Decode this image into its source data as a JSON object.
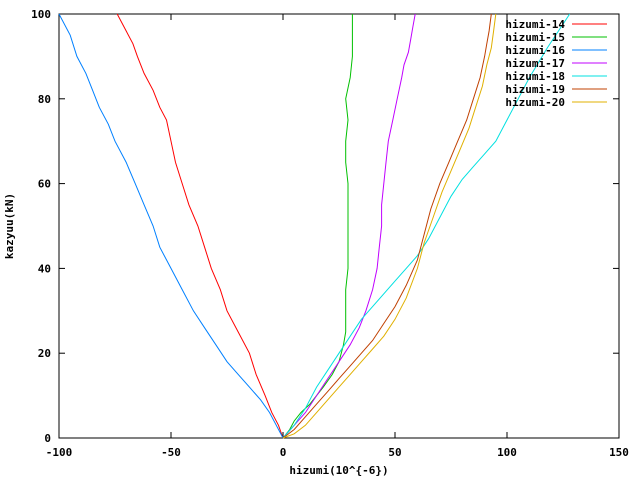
{
  "chart_data": {
    "type": "line",
    "xlabel": "hizumi(10^{-6})",
    "ylabel": "kazyuu(kN)",
    "xlim": [
      -100,
      150
    ],
    "ylim": [
      0,
      100
    ],
    "xticks": [
      "-100",
      "-50",
      "0",
      "50",
      "100",
      "150"
    ],
    "xtick_values": [
      -100,
      -50,
      0,
      50,
      100,
      150
    ],
    "yticks": [
      "0",
      "20",
      "40",
      "60",
      "80",
      "100"
    ],
    "ytick_values": [
      0,
      20,
      40,
      60,
      80,
      100
    ],
    "grid": false,
    "legend_position": "top-right",
    "series": [
      {
        "name": "hizumi-14",
        "color": "#ff0000",
        "x": [
          0,
          -2,
          -5,
          -8,
          -12,
          -15,
          -20,
          -25,
          -28,
          -32,
          -35,
          -38,
          -42,
          -45,
          -48,
          -50,
          -52,
          -55,
          -58,
          -62,
          -65,
          -67,
          -70,
          -72,
          -74
        ],
        "y": [
          0,
          3,
          6,
          10,
          15,
          20,
          25,
          30,
          35,
          40,
          45,
          50,
          55,
          60,
          65,
          70,
          75,
          78,
          82,
          86,
          90,
          93,
          96,
          98,
          100
        ]
      },
      {
        "name": "hizumi-15",
        "color": "#00c000",
        "x": [
          0,
          3,
          5,
          8,
          12,
          15,
          18,
          22,
          25,
          27,
          28,
          28,
          28,
          29,
          29,
          29,
          29,
          29,
          28,
          28,
          29,
          28,
          30,
          31,
          31
        ],
        "y": [
          0,
          2,
          4,
          6,
          8,
          10,
          12,
          15,
          18,
          22,
          25,
          30,
          35,
          40,
          45,
          50,
          55,
          60,
          65,
          70,
          75,
          80,
          85,
          90,
          100
        ]
      },
      {
        "name": "hizumi-16",
        "color": "#0080ff",
        "x": [
          0,
          -3,
          -6,
          -10,
          -15,
          -20,
          -25,
          -30,
          -35,
          -40,
          -45,
          -50,
          -55,
          -58,
          -62,
          -66,
          -70,
          -75,
          -78,
          -82,
          -85,
          -88,
          -92,
          -95,
          -100
        ],
        "y": [
          0,
          3,
          6,
          9,
          12,
          15,
          18,
          22,
          26,
          30,
          35,
          40,
          45,
          50,
          55,
          60,
          65,
          70,
          74,
          78,
          82,
          86,
          90,
          95,
          100
        ]
      },
      {
        "name": "hizumi-17",
        "color": "#c000ff",
        "x": [
          0,
          5,
          10,
          15,
          20,
          25,
          30,
          34,
          37,
          40,
          42,
          43,
          44,
          44,
          45,
          46,
          47,
          49,
          51,
          53,
          54,
          56,
          57,
          58,
          59
        ],
        "y": [
          0,
          3,
          6,
          10,
          14,
          18,
          22,
          26,
          30,
          35,
          40,
          45,
          50,
          55,
          60,
          65,
          70,
          75,
          80,
          85,
          88,
          91,
          94,
          97,
          100
        ]
      },
      {
        "name": "hizumi-18",
        "color": "#00e0e0",
        "x": [
          0,
          5,
          10,
          15,
          20,
          25,
          30,
          35,
          40,
          45,
          50,
          55,
          60,
          65,
          70,
          75,
          80,
          85,
          90,
          95,
          100,
          105,
          110,
          118,
          128
        ],
        "y": [
          0,
          3,
          7,
          12,
          16,
          20,
          24,
          28,
          31,
          34,
          37,
          40,
          43,
          47,
          52,
          57,
          61,
          64,
          67,
          70,
          75,
          80,
          85,
          92,
          100
        ]
      },
      {
        "name": "hizumi-19",
        "color": "#c04000",
        "x": [
          0,
          5,
          10,
          15,
          20,
          25,
          30,
          35,
          40,
          45,
          50,
          55,
          60,
          63,
          66,
          70,
          74,
          78,
          82,
          85,
          88,
          90,
          91,
          92,
          93
        ],
        "y": [
          0,
          2,
          5,
          8,
          11,
          14,
          17,
          20,
          23,
          27,
          31,
          36,
          42,
          48,
          54,
          60,
          65,
          70,
          75,
          80,
          85,
          90,
          93,
          96,
          100
        ]
      },
      {
        "name": "hizumi-20",
        "color": "#e0b000",
        "x": [
          0,
          5,
          10,
          15,
          20,
          25,
          30,
          35,
          40,
          45,
          50,
          55,
          60,
          63,
          67,
          71,
          75,
          79,
          83,
          86,
          89,
          91,
          93,
          94,
          95
        ],
        "y": [
          0,
          1,
          3,
          6,
          9,
          12,
          15,
          18,
          21,
          24,
          28,
          33,
          40,
          46,
          52,
          58,
          63,
          68,
          73,
          78,
          83,
          88,
          92,
          96,
          100
        ]
      }
    ]
  }
}
